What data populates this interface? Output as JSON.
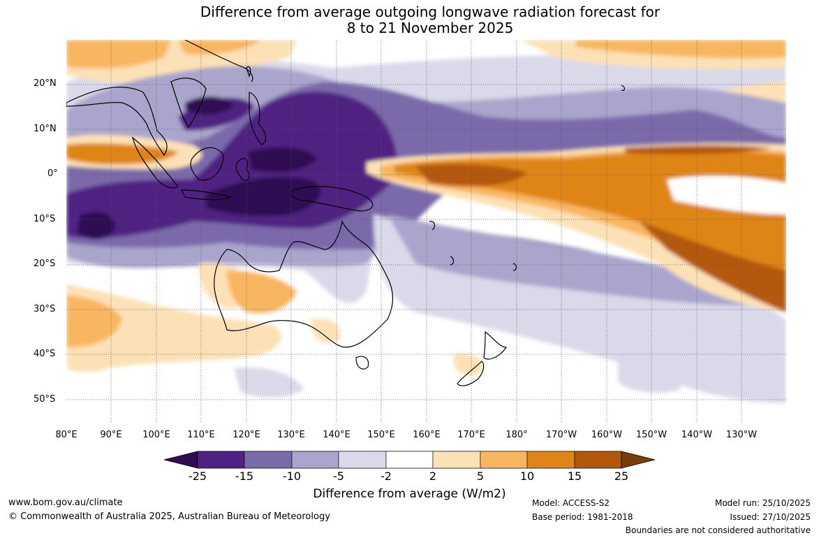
{
  "title_line1": "Difference from average outgoing longwave radiation forecast for",
  "title_line2": "8 to 21 November 2025",
  "lat_labels": [
    "20°N",
    "10°N",
    "0°",
    "10°S",
    "20°S",
    "30°S",
    "40°S",
    "50°S"
  ],
  "lon_labels": [
    "80°E",
    "90°E",
    "100°E",
    "110°E",
    "120°E",
    "130°E",
    "140°E",
    "150°E",
    "160°E",
    "170°E",
    "180°",
    "170°W",
    "160°W",
    "150°W",
    "140°W",
    "130°W"
  ],
  "colorbar": {
    "ticks": [
      "-25",
      "-15",
      "-10",
      "-5",
      "-2",
      "2",
      "5",
      "10",
      "15",
      "25"
    ],
    "colors": [
      "#2f0c53",
      "#4f2182",
      "#7a6aaa",
      "#aaa5cc",
      "#d9d9ea",
      "#ffffff",
      "#fde1b6",
      "#f9b660",
      "#df8518",
      "#b35808",
      "#7a3c0b"
    ],
    "label": "Difference from average (W/m2)"
  },
  "footer": {
    "website": "www.bom.gov.au/climate",
    "copyright": "© Commonwealth of Australia 2025, Australian Bureau of Meteorology",
    "model": "Model: ACCESS-S2",
    "base_period": "Base period: 1981-2018",
    "model_run": "Model run: 25/10/2025",
    "issued": "Issued: 27/10/2025",
    "disclaimer": "Boundaries are not considered authoritative"
  }
}
